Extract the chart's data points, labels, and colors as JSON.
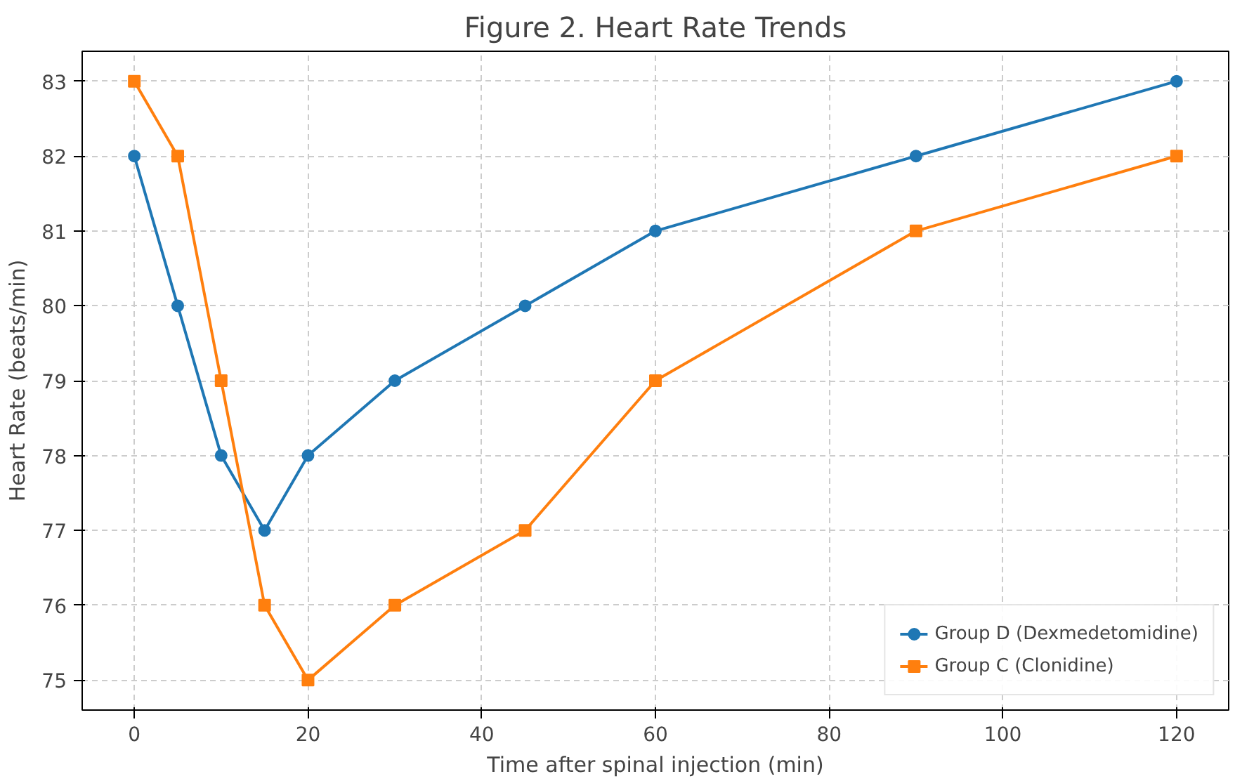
{
  "chart_data": {
    "type": "line",
    "title": "Figure 2. Heart Rate Trends",
    "xlabel": "Time after spinal injection (min)",
    "ylabel": "Heart Rate (beats/min)",
    "x": [
      0,
      5,
      10,
      15,
      20,
      30,
      45,
      60,
      90,
      120
    ],
    "series": [
      {
        "name": "Group D (Dexmedetomidine)",
        "color": "#1f77b4",
        "marker": "circle",
        "values": [
          82,
          80,
          78,
          77,
          78,
          79,
          80,
          81,
          82,
          83
        ]
      },
      {
        "name": "Group C (Clonidine)",
        "color": "#ff7f0e",
        "marker": "square",
        "values": [
          83,
          82,
          79,
          76,
          75,
          76,
          77,
          79,
          81,
          82
        ]
      }
    ],
    "xlim": [
      -6,
      126
    ],
    "ylim": [
      74.6,
      83.4
    ],
    "xticks": [
      0,
      20,
      40,
      60,
      80,
      100,
      120
    ],
    "yticks": [
      75,
      76,
      77,
      78,
      79,
      80,
      81,
      82,
      83
    ],
    "grid": true,
    "legend": "bottom right",
    "line_style": "solid"
  }
}
